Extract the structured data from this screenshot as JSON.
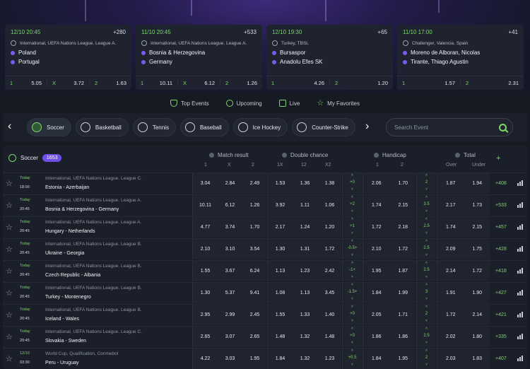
{
  "top_matches": [
    {
      "date": "12/10",
      "time": "20:45",
      "more": "+280",
      "league": "International, UEFA Nations League. League A.",
      "team1": "Poland",
      "team2": "Portugal",
      "odds": [
        {
          "label": "1",
          "value": "5.05"
        },
        {
          "label": "X",
          "value": "3.72"
        },
        {
          "label": "2",
          "value": "1.63"
        }
      ]
    },
    {
      "date": "11/10",
      "time": "20:45",
      "more": "+533",
      "league": "International, UEFA Nations League. League A.",
      "team1": "Bosnia & Herzegovina",
      "team2": "Germany",
      "odds": [
        {
          "label": "1",
          "value": "10.11"
        },
        {
          "label": "X",
          "value": "6.12"
        },
        {
          "label": "2",
          "value": "1.26"
        }
      ]
    },
    {
      "date": "12/10",
      "time": "19:30",
      "more": "+65",
      "league": "Turkey, TBSL",
      "team1": "Bursaspor",
      "team2": "Anadolu Efes SK",
      "odds": [
        {
          "label": "1",
          "value": "4.26"
        },
        {
          "label": "2",
          "value": "1.20"
        }
      ]
    },
    {
      "date": "11/10",
      "time": "17:00",
      "more": "+41",
      "league": "Challenger, Valencia, Spain",
      "team1": "Moreno de Alboran, Nicolas",
      "team2": "Tirante, Thiago Agustin",
      "odds": [
        {
          "label": "1",
          "value": "1.57"
        },
        {
          "label": "2",
          "value": "2.31"
        }
      ]
    }
  ],
  "tabs": [
    {
      "label": "Top Events",
      "icon": "trophy-icon"
    },
    {
      "label": "Upcoming",
      "icon": "clock-icon"
    },
    {
      "label": "Live",
      "icon": "tv-icon"
    },
    {
      "label": "My Favorites",
      "icon": "star-icon"
    }
  ],
  "sports": [
    {
      "label": "Soccer",
      "icon": "soccer-ball-icon",
      "active": true
    },
    {
      "label": "Basketball",
      "icon": "basketball-icon",
      "active": false
    },
    {
      "label": "Tennis",
      "icon": "tennis-ball-icon",
      "active": false
    },
    {
      "label": "Baseball",
      "icon": "baseball-icon",
      "active": false
    },
    {
      "label": "Ice Hockey",
      "icon": "hockey-puck-icon",
      "active": false
    },
    {
      "label": "Counter-Strike",
      "icon": "soldier-icon",
      "active": false
    }
  ],
  "search": {
    "placeholder": "Search Event"
  },
  "table_header": {
    "sport": "Soccer",
    "count": "1653",
    "groups": [
      {
        "title": "Match result",
        "cols": [
          "1",
          "X",
          "2"
        ]
      },
      {
        "title": "Double chance",
        "cols": [
          "1X",
          "12",
          "X2"
        ]
      },
      {
        "title": "Handicap",
        "cols": [
          "1",
          "2"
        ]
      },
      {
        "title": "Total",
        "cols": [
          "Over",
          "Under"
        ]
      }
    ],
    "plus": "+"
  },
  "rows": [
    {
      "date": "Today",
      "time": "18:00",
      "league": "International, UEFA Nations League. League C.",
      "team1": "Estonia",
      "team2": "Azerbaijan",
      "mr": [
        "3.04",
        "2.84",
        "2.49"
      ],
      "dc": [
        "1.53",
        "1.36",
        "1.38"
      ],
      "hcap_line": "+0",
      "hcap": [
        "2.06",
        "1.70"
      ],
      "total_line": "2",
      "total": [
        "1.87",
        "1.94"
      ],
      "more": "+408"
    },
    {
      "date": "Today",
      "time": "20:45",
      "league": "International, UEFA Nations League. League A.",
      "team1": "Bosnia & Herzegovina",
      "team2": "Germany",
      "mr": [
        "10.11",
        "6.12",
        "1.26"
      ],
      "dc": [
        "3.92",
        "1.11",
        "1.06"
      ],
      "hcap_line": "+2",
      "hcap": [
        "1.74",
        "2.15"
      ],
      "total_line": "3.5",
      "total": [
        "2.17",
        "1.73"
      ],
      "more": "+533"
    },
    {
      "date": "Today",
      "time": "20:45",
      "league": "International, UEFA Nations League. League A.",
      "team1": "Hungary",
      "team2": "Netherlands",
      "mr": [
        "4.77",
        "3.74",
        "1.70"
      ],
      "dc": [
        "2.17",
        "1.24",
        "1.20"
      ],
      "hcap_line": "+1",
      "hcap": [
        "1.72",
        "2.18"
      ],
      "total_line": "2.5",
      "total": [
        "1.74",
        "2.15"
      ],
      "more": "+457"
    },
    {
      "date": "Today",
      "time": "20:45",
      "league": "International, UEFA Nations League. League B.",
      "team1": "Ukraine",
      "team2": "Georgia",
      "mr": [
        "2.10",
        "3.10",
        "3.54"
      ],
      "dc": [
        "1.30",
        "1.31",
        "1.72"
      ],
      "hcap_line": "-0.5+",
      "hcap": [
        "2.10",
        "1.72"
      ],
      "total_line": "2.5",
      "total": [
        "2.09",
        "1.75"
      ],
      "more": "+428"
    },
    {
      "date": "Today",
      "time": "20:45",
      "league": "International, UEFA Nations League. League B.",
      "team1": "Czech Republic",
      "team2": "Albania",
      "mr": [
        "1.55",
        "3.67",
        "6.24"
      ],
      "dc": [
        "1.13",
        "1.23",
        "2.42"
      ],
      "hcap_line": "-1+",
      "hcap": [
        "1.95",
        "1.87"
      ],
      "total_line": "2.5",
      "total": [
        "2.14",
        "1.72"
      ],
      "more": "+418"
    },
    {
      "date": "Today",
      "time": "20:45",
      "league": "International, UEFA Nations League. League B.",
      "team1": "Turkey",
      "team2": "Montenegro",
      "mr": [
        "1.30",
        "5.37",
        "9.41"
      ],
      "dc": [
        "1.08",
        "1.13",
        "3.45"
      ],
      "hcap_line": "-1.5+",
      "hcap": [
        "1.84",
        "1.99"
      ],
      "total_line": "3",
      "total": [
        "1.91",
        "1.90"
      ],
      "more": "+427"
    },
    {
      "date": "Today",
      "time": "20:45",
      "league": "International, UEFA Nations League. League B.",
      "team1": "Iceland",
      "team2": "Wales",
      "mr": [
        "2.95",
        "2.99",
        "2.45"
      ],
      "dc": [
        "1.55",
        "1.33",
        "1.40"
      ],
      "hcap_line": "+0",
      "hcap": [
        "2.05",
        "1.71"
      ],
      "total_line": "2",
      "total": [
        "1.72",
        "2.14"
      ],
      "more": "+421"
    },
    {
      "date": "Today",
      "time": "20:45",
      "league": "International, UEFA Nations League. League C.",
      "team1": "Slovakia",
      "team2": "Sweden",
      "mr": [
        "2.65",
        "3.07",
        "2.65"
      ],
      "dc": [
        "1.48",
        "1.32",
        "1.48"
      ],
      "hcap_line": "+0",
      "hcap": [
        "1.86",
        "1.86"
      ],
      "total_line": "2.5",
      "total": [
        "2.02",
        "1.80"
      ],
      "more": "+335"
    },
    {
      "date": "12/10",
      "time": "03:30",
      "league": "World Cup, Qualification, Conmebol",
      "team1": "Peru",
      "team2": "Uruguay",
      "mr": [
        "4.22",
        "3.03",
        "1.95"
      ],
      "dc": [
        "1.84",
        "1.32",
        "1.23"
      ],
      "hcap_line": "+0.5",
      "hcap": [
        "1.84",
        "1.95"
      ],
      "total_line": "2",
      "total": [
        "2.03",
        "1.83"
      ],
      "more": "+407"
    }
  ],
  "colors": {
    "accent": "#7dd66a",
    "brand": "#6f4fe6",
    "background": "#161a22"
  }
}
